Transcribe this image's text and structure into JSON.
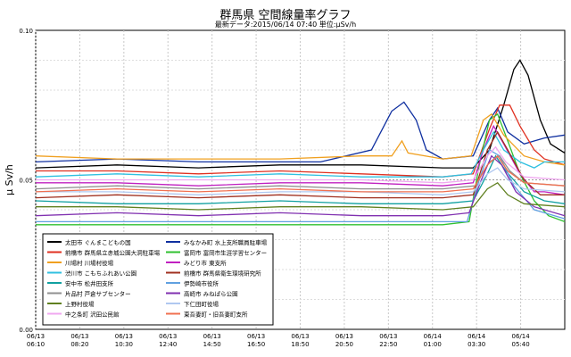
{
  "chart_data": {
    "type": "line",
    "title": "群馬県 空間線量率グラフ",
    "subtitle": "最新データ:2015/06/14 07:40 単位:μSv/h",
    "ylabel": "μ Sv/h",
    "ylim": [
      0,
      0.1
    ],
    "y_ticks": [
      "0.00",
      "0.05",
      "0.10"
    ],
    "x_ticks": [
      [
        "06/13",
        "06:10"
      ],
      [
        "06/13",
        "08:20"
      ],
      [
        "06/13",
        "10:30"
      ],
      [
        "06/13",
        "12:40"
      ],
      [
        "06/13",
        "14:50"
      ],
      [
        "06/13",
        "16:50"
      ],
      [
        "06/13",
        "18:50"
      ],
      [
        "06/13",
        "20:50"
      ],
      [
        "06/13",
        "22:50"
      ],
      [
        "06/14",
        "01:00"
      ],
      [
        "06/14",
        "03:30"
      ],
      [
        "06/14",
        "05:40"
      ]
    ],
    "x_range_hours": [
      0,
      26
    ],
    "grid": true,
    "legend_position": "bottom-left",
    "series": [
      {
        "name": "太田市 ぐんまこどもの国",
        "color": "#000000",
        "points": [
          [
            0,
            0.054
          ],
          [
            4,
            0.055
          ],
          [
            8,
            0.054
          ],
          [
            12,
            0.055
          ],
          [
            16,
            0.055
          ],
          [
            20,
            0.054
          ],
          [
            21.5,
            0.054
          ],
          [
            22.3,
            0.06
          ],
          [
            23,
            0.075
          ],
          [
            23.5,
            0.087
          ],
          [
            23.8,
            0.09
          ],
          [
            24.2,
            0.085
          ],
          [
            24.8,
            0.07
          ],
          [
            25.3,
            0.062
          ],
          [
            26,
            0.059
          ]
        ]
      },
      {
        "name": "みなかみ町 水上支所職員駐車場",
        "color": "#1030a0",
        "points": [
          [
            0,
            0.056
          ],
          [
            4,
            0.057
          ],
          [
            8,
            0.056
          ],
          [
            12,
            0.056
          ],
          [
            14,
            0.056
          ],
          [
            16.5,
            0.06
          ],
          [
            17.5,
            0.073
          ],
          [
            18.1,
            0.076
          ],
          [
            18.7,
            0.07
          ],
          [
            19.2,
            0.06
          ],
          [
            20,
            0.057
          ],
          [
            21.5,
            0.058
          ],
          [
            22.3,
            0.07
          ],
          [
            22.7,
            0.074
          ],
          [
            23.2,
            0.066
          ],
          [
            24,
            0.062
          ],
          [
            25,
            0.064
          ],
          [
            26,
            0.065
          ]
        ]
      },
      {
        "name": "前橋市 群馬県立赤城公園大洞駐車場",
        "color": "#e03020",
        "points": [
          [
            0,
            0.053
          ],
          [
            4,
            0.053
          ],
          [
            8,
            0.052
          ],
          [
            12,
            0.053
          ],
          [
            16,
            0.052
          ],
          [
            20,
            0.051
          ],
          [
            21.5,
            0.052
          ],
          [
            22.3,
            0.067
          ],
          [
            22.8,
            0.075
          ],
          [
            23.3,
            0.075
          ],
          [
            23.8,
            0.068
          ],
          [
            24.5,
            0.06
          ],
          [
            25,
            0.057
          ],
          [
            26,
            0.055
          ]
        ]
      },
      {
        "name": "富岡市 富岡市生涯学習センター",
        "color": "#30c030",
        "points": [
          [
            0,
            0.035
          ],
          [
            4,
            0.035
          ],
          [
            8,
            0.035
          ],
          [
            12,
            0.035
          ],
          [
            16,
            0.035
          ],
          [
            20,
            0.035
          ],
          [
            21.3,
            0.036
          ],
          [
            21.8,
            0.055
          ],
          [
            22.3,
            0.07
          ],
          [
            22.7,
            0.072
          ],
          [
            23.2,
            0.063
          ],
          [
            23.8,
            0.052
          ],
          [
            24.5,
            0.043
          ],
          [
            25.2,
            0.038
          ],
          [
            26,
            0.036
          ]
        ]
      },
      {
        "name": "川場村 川場村役場",
        "color": "#f0a020",
        "points": [
          [
            0,
            0.058
          ],
          [
            4,
            0.057
          ],
          [
            8,
            0.057
          ],
          [
            12,
            0.057
          ],
          [
            16,
            0.058
          ],
          [
            17.5,
            0.058
          ],
          [
            18,
            0.063
          ],
          [
            18.3,
            0.059
          ],
          [
            20,
            0.057
          ],
          [
            21.4,
            0.058
          ],
          [
            22,
            0.07
          ],
          [
            22.4,
            0.072
          ],
          [
            23,
            0.065
          ],
          [
            24,
            0.058
          ],
          [
            25,
            0.056
          ],
          [
            26,
            0.055
          ]
        ]
      },
      {
        "name": "みどり市 東支所",
        "color": "#c020c0",
        "points": [
          [
            0,
            0.049
          ],
          [
            4,
            0.049
          ],
          [
            8,
            0.048
          ],
          [
            12,
            0.049
          ],
          [
            16,
            0.049
          ],
          [
            20,
            0.048
          ],
          [
            21.5,
            0.049
          ],
          [
            22,
            0.06
          ],
          [
            22.5,
            0.068
          ],
          [
            23,
            0.062
          ],
          [
            23.8,
            0.052
          ],
          [
            24.5,
            0.046
          ],
          [
            25,
            0.046
          ],
          [
            26,
            0.045
          ]
        ]
      },
      {
        "name": "渋川市 こもちふれあい公園",
        "color": "#30c0e0",
        "points": [
          [
            0,
            0.051
          ],
          [
            4,
            0.052
          ],
          [
            8,
            0.051
          ],
          [
            12,
            0.052
          ],
          [
            16,
            0.051
          ],
          [
            20,
            0.051
          ],
          [
            21.4,
            0.052
          ],
          [
            22,
            0.06
          ],
          [
            22.5,
            0.066
          ],
          [
            23,
            0.06
          ],
          [
            23.8,
            0.056
          ],
          [
            24.5,
            0.054
          ],
          [
            25,
            0.056
          ],
          [
            26,
            0.056
          ]
        ]
      },
      {
        "name": "前橋市 群馬県衛生環境研究所",
        "color": "#a03020",
        "points": [
          [
            0,
            0.044
          ],
          [
            4,
            0.045
          ],
          [
            8,
            0.044
          ],
          [
            12,
            0.045
          ],
          [
            16,
            0.044
          ],
          [
            20,
            0.044
          ],
          [
            21.5,
            0.045
          ],
          [
            22.2,
            0.06
          ],
          [
            22.7,
            0.066
          ],
          [
            23.2,
            0.06
          ],
          [
            24,
            0.05
          ],
          [
            24.8,
            0.045
          ],
          [
            26,
            0.045
          ]
        ]
      },
      {
        "name": "安中市 松井田支所",
        "color": "#10a0a0",
        "points": [
          [
            0,
            0.043
          ],
          [
            4,
            0.042
          ],
          [
            8,
            0.042
          ],
          [
            12,
            0.043
          ],
          [
            16,
            0.042
          ],
          [
            20,
            0.042
          ],
          [
            21.5,
            0.043
          ],
          [
            22.2,
            0.052
          ],
          [
            22.6,
            0.058
          ],
          [
            23.1,
            0.053
          ],
          [
            24,
            0.046
          ],
          [
            25,
            0.043
          ],
          [
            26,
            0.042
          ]
        ]
      },
      {
        "name": "伊勢崎市役所",
        "color": "#60a0e0",
        "points": [
          [
            0,
            0.036
          ],
          [
            4,
            0.036
          ],
          [
            8,
            0.036
          ],
          [
            12,
            0.036
          ],
          [
            16,
            0.036
          ],
          [
            20,
            0.036
          ],
          [
            21.2,
            0.036
          ],
          [
            21.8,
            0.05
          ],
          [
            22.3,
            0.06
          ],
          [
            22.8,
            0.058
          ],
          [
            23.5,
            0.048
          ],
          [
            24.5,
            0.04
          ],
          [
            26,
            0.037
          ]
        ]
      },
      {
        "name": "片品村 戸倉サブセンター",
        "color": "#909090",
        "points": [
          [
            0,
            0.047
          ],
          [
            4,
            0.048
          ],
          [
            8,
            0.047
          ],
          [
            12,
            0.048
          ],
          [
            16,
            0.047
          ],
          [
            20,
            0.047
          ],
          [
            21.6,
            0.048
          ],
          [
            22.3,
            0.056
          ],
          [
            22.8,
            0.058
          ],
          [
            23.3,
            0.053
          ],
          [
            24,
            0.049
          ],
          [
            26,
            0.048
          ]
        ]
      },
      {
        "name": "高崎市 みねぱら公園",
        "color": "#8030b0",
        "points": [
          [
            0,
            0.038
          ],
          [
            4,
            0.039
          ],
          [
            8,
            0.038
          ],
          [
            12,
            0.039
          ],
          [
            16,
            0.038
          ],
          [
            20,
            0.038
          ],
          [
            21.3,
            0.039
          ],
          [
            21.9,
            0.05
          ],
          [
            22.4,
            0.058
          ],
          [
            22.9,
            0.055
          ],
          [
            23.6,
            0.046
          ],
          [
            24.5,
            0.041
          ],
          [
            26,
            0.038
          ]
        ]
      },
      {
        "name": "上野村役場",
        "color": "#608020",
        "points": [
          [
            0,
            0.041
          ],
          [
            4,
            0.041
          ],
          [
            8,
            0.04
          ],
          [
            12,
            0.041
          ],
          [
            16,
            0.041
          ],
          [
            20,
            0.04
          ],
          [
            21.5,
            0.041
          ],
          [
            22.2,
            0.047
          ],
          [
            22.7,
            0.049
          ],
          [
            23.2,
            0.045
          ],
          [
            24,
            0.042
          ],
          [
            26,
            0.041
          ]
        ]
      },
      {
        "name": "下仁田町役場",
        "color": "#b0c8f0",
        "points": [
          [
            0,
            0.046
          ],
          [
            4,
            0.046
          ],
          [
            8,
            0.045
          ],
          [
            12,
            0.046
          ],
          [
            16,
            0.046
          ],
          [
            20,
            0.045
          ],
          [
            21.5,
            0.046
          ],
          [
            22.2,
            0.052
          ],
          [
            22.7,
            0.054
          ],
          [
            23.2,
            0.05
          ],
          [
            24,
            0.047
          ],
          [
            26,
            0.046
          ]
        ]
      },
      {
        "name": "中之条町 沢田公民館",
        "color": "#f0a8f0",
        "points": [
          [
            0,
            0.05
          ],
          [
            4,
            0.05
          ],
          [
            8,
            0.05
          ],
          [
            12,
            0.05
          ],
          [
            16,
            0.05
          ],
          [
            20,
            0.049
          ],
          [
            21.5,
            0.05
          ],
          [
            22.2,
            0.058
          ],
          [
            22.6,
            0.061
          ],
          [
            23.1,
            0.056
          ],
          [
            24,
            0.051
          ],
          [
            26,
            0.05
          ]
        ]
      },
      {
        "name": "東吾妻町・旧吾妻町支所",
        "color": "#f07050",
        "points": [
          [
            0,
            0.046
          ],
          [
            4,
            0.047
          ],
          [
            8,
            0.046
          ],
          [
            12,
            0.047
          ],
          [
            16,
            0.046
          ],
          [
            20,
            0.046
          ],
          [
            21.5,
            0.047
          ],
          [
            22.2,
            0.055
          ],
          [
            22.7,
            0.058
          ],
          [
            23.2,
            0.053
          ],
          [
            24,
            0.049
          ],
          [
            26,
            0.048
          ]
        ]
      }
    ]
  }
}
